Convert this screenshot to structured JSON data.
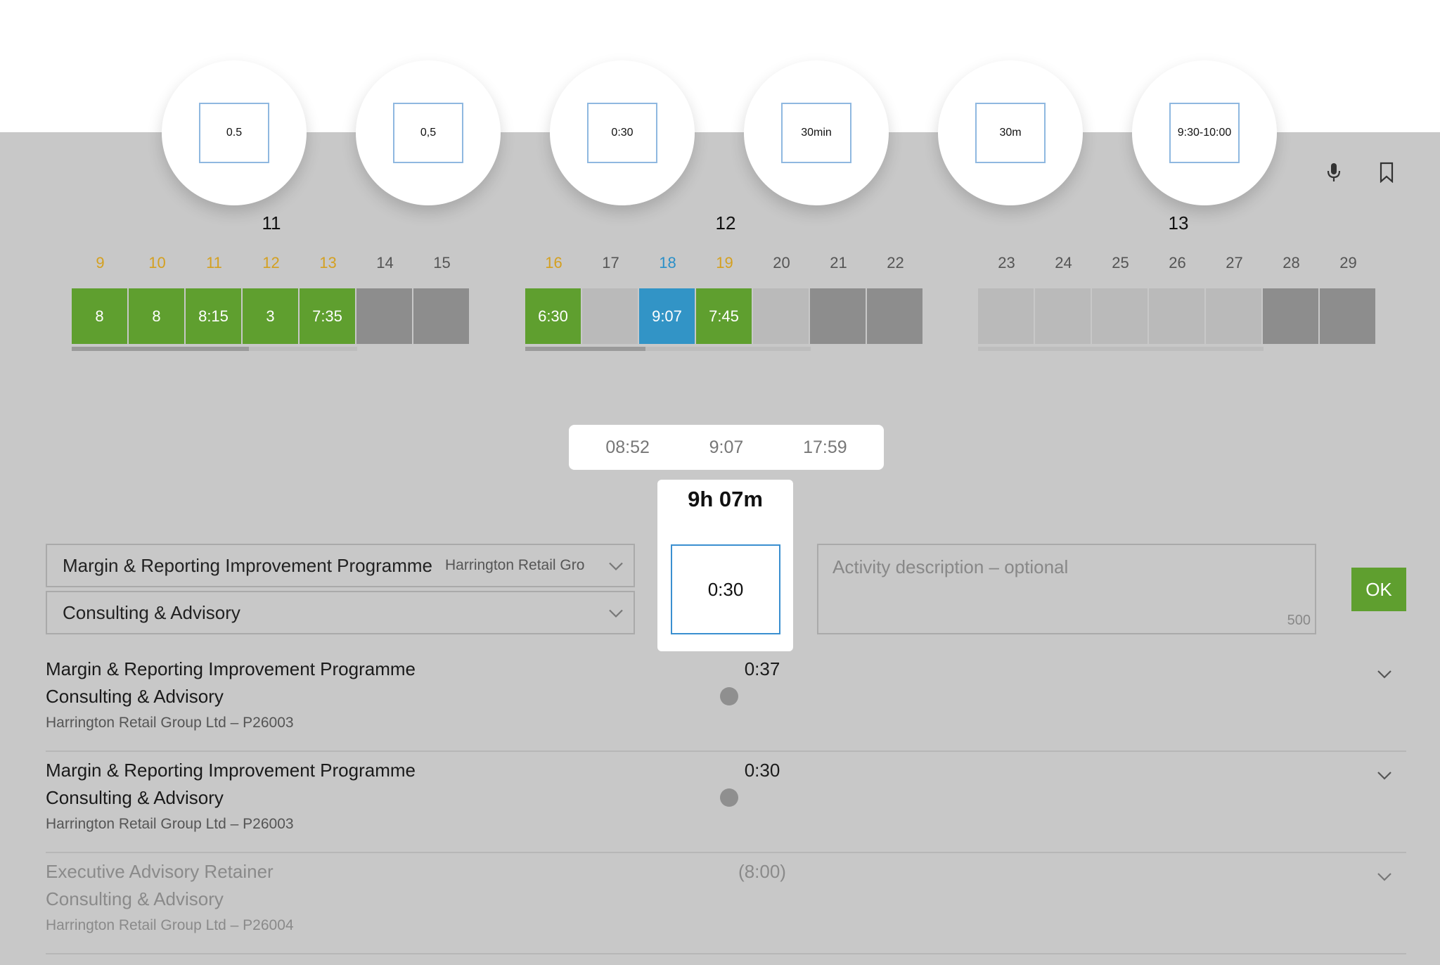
{
  "formats": [
    "0.5",
    "0,5",
    "0:30",
    "30min",
    "30m",
    "9:30-10:00"
  ],
  "weeks": [
    {
      "label": "11",
      "days": [
        {
          "day": "9",
          "value": "8",
          "state": "green",
          "num_color": "orange"
        },
        {
          "day": "10",
          "value": "8",
          "state": "green",
          "num_color": "orange"
        },
        {
          "day": "11",
          "value": "8:15",
          "state": "green",
          "num_color": "orange"
        },
        {
          "day": "12",
          "value": "3",
          "state": "green",
          "num_color": "orange"
        },
        {
          "day": "13",
          "value": "7:35",
          "state": "green",
          "num_color": "orange"
        },
        {
          "day": "14",
          "value": "",
          "state": "dark",
          "num_color": "grey"
        },
        {
          "day": "15",
          "value": "",
          "state": "dark",
          "num_color": "grey"
        }
      ],
      "progress": 0.62
    },
    {
      "label": "12",
      "days": [
        {
          "day": "16",
          "value": "6:30",
          "state": "green",
          "num_color": "orange"
        },
        {
          "day": "17",
          "value": "",
          "state": "light",
          "num_color": "grey"
        },
        {
          "day": "18",
          "value": "9:07",
          "state": "blue",
          "num_color": "blue"
        },
        {
          "day": "19",
          "value": "7:45",
          "state": "green",
          "num_color": "orange"
        },
        {
          "day": "20",
          "value": "",
          "state": "light",
          "num_color": "grey"
        },
        {
          "day": "21",
          "value": "",
          "state": "dark",
          "num_color": "grey"
        },
        {
          "day": "22",
          "value": "",
          "state": "dark",
          "num_color": "grey"
        }
      ],
      "progress": 0.42
    },
    {
      "label": "13",
      "days": [
        {
          "day": "23",
          "value": "",
          "state": "light",
          "num_color": "grey"
        },
        {
          "day": "24",
          "value": "",
          "state": "light",
          "num_color": "grey"
        },
        {
          "day": "25",
          "value": "",
          "state": "light",
          "num_color": "grey"
        },
        {
          "day": "26",
          "value": "",
          "state": "light",
          "num_color": "grey"
        },
        {
          "day": "27",
          "value": "",
          "state": "light",
          "num_color": "grey"
        },
        {
          "day": "28",
          "value": "",
          "state": "dark",
          "num_color": "grey"
        },
        {
          "day": "29",
          "value": "",
          "state": "dark",
          "num_color": "grey"
        }
      ],
      "progress": 0.0
    }
  ],
  "day_times": {
    "start": "08:52",
    "total": "9:07",
    "end": "17:59"
  },
  "duration": {
    "total_label": "9h 07m",
    "input_value": "0:30"
  },
  "form": {
    "project": "Margin & Reporting Improvement Programme",
    "client": "Harrington Retail Gro",
    "activity": "Consulting & Advisory",
    "description_placeholder": "Activity description – optional",
    "char_limit": "500",
    "ok_label": "OK"
  },
  "entries": [
    {
      "project": "Margin & Reporting Improvement Programme",
      "activity": "Consulting & Advisory",
      "client": "Harrington Retail Group Ltd – P26003",
      "time": "0:37",
      "muted": false
    },
    {
      "project": "Margin & Reporting Improvement Programme",
      "activity": "Consulting & Advisory",
      "client": "Harrington Retail Group Ltd – P26003",
      "time": "0:30",
      "muted": false
    },
    {
      "project": "Executive Advisory Retainer",
      "activity": "Consulting & Advisory",
      "client": "Harrington Retail Group Ltd – P26004",
      "time": "(8:00)",
      "muted": true
    }
  ],
  "colors": {
    "green": "#5f9f2f",
    "blue": "#3294c6",
    "orange": "#d4a020"
  },
  "icons": {
    "microphone": "microphone-icon",
    "bookmark": "bookmark-icon",
    "chevron": "chevron-down-icon"
  }
}
